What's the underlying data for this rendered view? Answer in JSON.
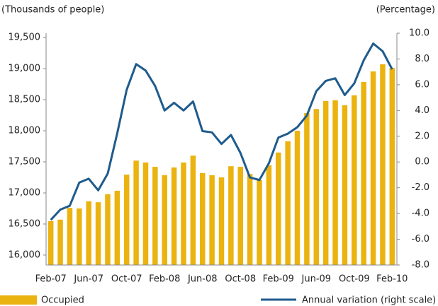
{
  "chart_data": {
    "type": "bar-line",
    "ylabel": "(Thousands of people)",
    "y2label": "(Percentage)",
    "categories": [
      "Feb-07",
      null,
      null,
      null,
      "Jun-07",
      null,
      null,
      null,
      "Oct-07",
      null,
      null,
      null,
      "Feb-08",
      null,
      null,
      null,
      "Jun-08",
      null,
      null,
      null,
      "Oct-08",
      null,
      null,
      null,
      "Feb-09",
      null,
      null,
      null,
      "Jun-09",
      null,
      null,
      null,
      "Oct-09",
      null,
      null,
      null,
      "Feb-10"
    ],
    "series": [
      {
        "name": "Occupied",
        "color": "#ebb310",
        "kind": "bar",
        "values": [
          16545,
          16570,
          16760,
          16750,
          16865,
          16850,
          16980,
          17035,
          17295,
          17520,
          17490,
          17420,
          17285,
          17410,
          17490,
          17600,
          17320,
          17285,
          17250,
          17430,
          17420,
          17305,
          17205,
          17445,
          17650,
          17830,
          18000,
          18285,
          18350,
          18480,
          18490,
          18410,
          18570,
          18785,
          18955,
          19070,
          19010
        ]
      },
      {
        "name": "Annual variation (right scale)",
        "color": "#1f5b8c",
        "kind": "line",
        "axis": "y2",
        "values": [
          -4.5,
          -3.7,
          -3.4,
          -1.6,
          -1.3,
          -2.2,
          -0.9,
          2.2,
          5.6,
          7.6,
          7.1,
          5.9,
          4.0,
          4.6,
          4.0,
          4.7,
          2.4,
          2.3,
          1.4,
          2.1,
          0.7,
          -1.2,
          -1.4,
          -0.1,
          1.9,
          2.2,
          2.7,
          3.6,
          5.5,
          6.3,
          6.5,
          5.2,
          6.1,
          7.9,
          9.2,
          8.6,
          7.2
        ]
      }
    ],
    "ylim": [
      15840,
      19570
    ],
    "yticks": [
      {
        "value": 16000,
        "label": "16,000"
      },
      {
        "value": 16500,
        "label": "16,500"
      },
      {
        "value": 17000,
        "label": "17,000"
      },
      {
        "value": 17500,
        "label": "17,500"
      },
      {
        "value": 18000,
        "label": "18,000"
      },
      {
        "value": 18500,
        "label": "18,500"
      },
      {
        "value": 19000,
        "label": "19,000"
      },
      {
        "value": 19500,
        "label": "19,500"
      }
    ],
    "y2lim": [
      -8,
      10
    ],
    "y2ticks": [
      {
        "value": -8,
        "label": "-8.0"
      },
      {
        "value": -6,
        "label": "-6.0"
      },
      {
        "value": -4,
        "label": "-4.0"
      },
      {
        "value": -2,
        "label": "-2.0"
      },
      {
        "value": 0,
        "label": "0.0"
      },
      {
        "value": 2,
        "label": "2.0"
      },
      {
        "value": 4,
        "label": "4.0"
      },
      {
        "value": 6,
        "label": "6.0"
      },
      {
        "value": 8,
        "label": "8.0"
      },
      {
        "value": 10,
        "label": "10.0"
      }
    ],
    "legend": "bottom"
  }
}
